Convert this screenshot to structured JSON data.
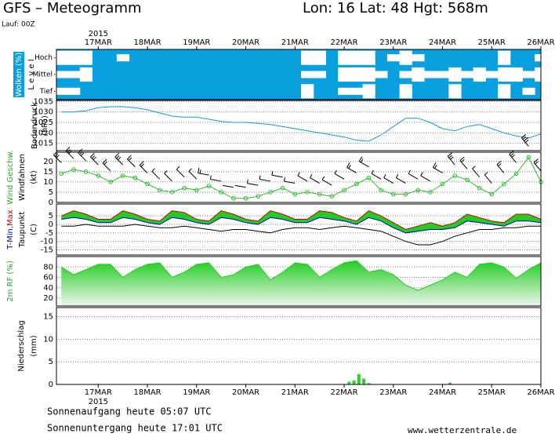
{
  "chart_data": {
    "type": "meteogram",
    "title": "GFS – Meteogramm",
    "location": "Lon: 16 Lat: 48 Hgt: 568m",
    "run": "Lauf: 00Z",
    "year": "2015",
    "sunrise": "Sonnenaufgang heute 05:07 UTC",
    "sunset": "Sonnenuntergang heute 17:01 UTC",
    "source": "www.wetterzentrale.de",
    "xlim": [
      16.15,
      26
    ],
    "xticks": [
      {
        "value": 17,
        "label": "17MAR"
      },
      {
        "value": 18,
        "label": "18MAR"
      },
      {
        "value": 19,
        "label": "19MAR"
      },
      {
        "value": 20,
        "label": "20MAR"
      },
      {
        "value": 21,
        "label": "21MAR"
      },
      {
        "value": 22,
        "label": "22MAR"
      },
      {
        "value": 23,
        "label": "23MAR"
      },
      {
        "value": 24,
        "label": "24MAR"
      },
      {
        "value": 25,
        "label": "25MAR"
      },
      {
        "value": 26,
        "label": "26MAR"
      }
    ],
    "x": [
      16.25,
      16.5,
      16.75,
      17,
      17.25,
      17.5,
      17.75,
      18,
      18.25,
      18.5,
      18.75,
      19,
      19.25,
      19.5,
      19.75,
      20,
      20.25,
      20.5,
      20.75,
      21,
      21.25,
      21.5,
      21.75,
      22,
      22.25,
      22.5,
      22.75,
      23,
      23.25,
      23.5,
      23.75,
      24,
      24.25,
      24.5,
      24.75,
      25,
      25.25,
      25.5,
      25.75,
      26
    ],
    "panels": [
      {
        "type": "clouds",
        "ylabel": [
          "Wolken (%)",
          "L e v e l"
        ],
        "background": "#0aa0e0",
        "color": "#ffffff",
        "series": [
          {
            "name": "Hoch",
            "values": [
              1,
              1,
              1,
              0,
              0,
              0.5,
              0,
              0,
              0,
              0,
              0,
              0,
              0,
              0,
              0,
              0,
              0,
              0,
              0,
              0,
              1,
              1,
              0,
              1,
              1,
              1,
              0,
              0.5,
              1,
              0.5,
              0,
              0,
              0,
              0,
              0,
              0,
              1,
              0,
              0,
              0.5
            ]
          },
          {
            "name": "Mittel",
            "values": [
              0.5,
              0.5,
              1,
              0,
              0,
              0,
              0,
              0,
              0,
              0,
              0,
              0,
              0,
              0,
              0,
              0,
              0,
              0,
              0,
              0,
              0.5,
              0.5,
              0,
              1,
              1,
              1,
              0.5,
              0,
              0.5,
              1,
              0.5,
              0.5,
              1,
              0.5,
              1,
              0.5,
              1,
              1,
              0.5,
              1
            ]
          },
          {
            "name": "Tief",
            "values": [
              0.5,
              0.5,
              0,
              0,
              0,
              0,
              0,
              0,
              0,
              0,
              0,
              0,
              0,
              0,
              0,
              0,
              0,
              0,
              0,
              0,
              1,
              0,
              0,
              0.5,
              0.5,
              1,
              0,
              0,
              1,
              0,
              0,
              0,
              1,
              0,
              0,
              0,
              1,
              0,
              0.5,
              0
            ]
          }
        ]
      },
      {
        "type": "line",
        "ylabel": [
          "Bodendruck",
          "(hPa)"
        ],
        "ylabel_color": "#000000",
        "ylim": [
          1011.5,
          1035.5
        ],
        "yticks": [
          1015,
          1020,
          1025,
          1030,
          1035
        ],
        "grid": true,
        "series": [
          {
            "color": "#1c96d0",
            "values": [
              1030,
              1030,
              1030.5,
              1032,
              1032.5,
              1032.5,
              1032,
              1031,
              1029.5,
              1028,
              1027.5,
              1027.5,
              1026.5,
              1025.5,
              1025,
              1025,
              1024.5,
              1024,
              1023,
              1022,
              1021,
              1020,
              1019,
              1018,
              1016.5,
              1016,
              1019,
              1023,
              1027,
              1027,
              1025,
              1022,
              1021,
              1023,
              1024,
              1022,
              1020,
              1018.5,
              1017.5,
              1019.5
            ]
          }
        ]
      },
      {
        "type": "wind",
        "ylabel": [
          "Wind Geschw.",
          "Windfahnen",
          "(kt)"
        ],
        "ylabel_colors": [
          "#22aa22",
          "#000000",
          "#000000"
        ],
        "ylim": [
          0,
          24.5
        ],
        "yticks": [
          0,
          5,
          10,
          15,
          20
        ],
        "grid": true,
        "series": [
          {
            "color": "#33bb33",
            "barb_color": "#000000",
            "values": [
              14,
              16,
              15,
              13,
              10,
              13,
              12,
              9,
              6,
              5,
              7,
              6,
              8,
              5,
              2,
              2,
              3,
              5,
              7,
              4,
              5,
              4,
              3,
              6,
              9,
              12,
              6,
              4,
              4,
              6,
              5,
              9,
              13,
              11,
              7,
              4,
              9,
              14,
              22,
              10
            ],
            "directions": [
              315,
              315,
              315,
              315,
              315,
              315,
              315,
              315,
              315,
              315,
              315,
              315,
              280,
              280,
              280,
              280,
              280,
              280,
              280,
              280,
              300,
              300,
              300,
              300,
              300,
              300,
              300,
              300,
              300,
              300,
              300,
              300,
              320,
              320,
              320,
              320,
              320,
              320,
              320,
              320
            ]
          }
        ]
      },
      {
        "type": "temperature",
        "ylabel": [
          "Taupunkt",
          "(C)"
        ],
        "ylabel_color": "#000000",
        "ylim": [
          -18,
          12
        ],
        "yticks": [
          5,
          0,
          -5,
          -10,
          -15
        ],
        "grid": true,
        "fill": "#22cc22",
        "separator": ",",
        "separator_color": "#008800",
        "series": [
          {
            "name": "Max",
            "color": "#d00000",
            "values": [
              5,
              8,
              6,
              3,
              3,
              8,
              6,
              3,
              2,
              8,
              7,
              3,
              2,
              8,
              6,
              3,
              2,
              8,
              6,
              3,
              3,
              8,
              7,
              4,
              2,
              8,
              5,
              1,
              -3,
              -1,
              1,
              -1,
              1,
              6,
              4,
              2,
              1,
              6,
              6,
              3
            ]
          },
          {
            "name": "T-Min",
            "color": "#0000d0",
            "values": [
              3,
              4,
              3,
              1,
              1,
              4,
              3,
              1,
              0,
              4,
              3,
              1,
              0,
              4,
              3,
              1,
              0,
              4,
              3,
              1,
              1,
              4,
              3,
              2,
              0,
              4,
              2,
              -2,
              -5,
              -4,
              -3,
              -3,
              -2,
              2,
              1,
              0,
              -1,
              2,
              2,
              1
            ]
          },
          {
            "name": "Taupunkt",
            "color": "#000000",
            "values": [
              -1,
              -1,
              0,
              -1,
              -1,
              -1,
              0,
              -1,
              -2,
              -2,
              -1,
              -2,
              -3,
              -4,
              -3,
              -3,
              -4,
              -5,
              -3,
              -2,
              -2,
              -3,
              -2,
              -1,
              -2,
              -3,
              -4,
              -7,
              -10,
              -12,
              -12,
              -10,
              -7,
              -5,
              -3,
              -3,
              -2,
              -2,
              -1,
              -1
            ]
          }
        ]
      },
      {
        "type": "area",
        "ylabel": [
          "2m RF (%)"
        ],
        "ylabel_color": "#22aa22",
        "ylim": [
          5,
          100
        ],
        "yticks": [
          80,
          60,
          40,
          20
        ],
        "grid": true,
        "series": [
          {
            "color": "#22cc22",
            "values": [
              80,
              65,
              75,
              85,
              85,
              60,
              75,
              85,
              88,
              60,
              70,
              85,
              88,
              60,
              65,
              80,
              85,
              55,
              70,
              88,
              85,
              60,
              75,
              88,
              92,
              70,
              75,
              65,
              45,
              35,
              45,
              55,
              70,
              60,
              85,
              88,
              80,
              58,
              75,
              88
            ]
          }
        ]
      },
      {
        "type": "bar",
        "ylabel": [
          "Niederschlag",
          "(mm)"
        ],
        "ylabel_color": "#000000",
        "ylim": [
          0,
          17
        ],
        "yticks": [
          0,
          5,
          10,
          15
        ],
        "grid": true,
        "color": "#33cc33",
        "x": [
          22.1,
          22.2,
          22.3,
          22.4,
          22.5,
          24.15
        ],
        "values": [
          0.6,
          0.9,
          2.3,
          1.3,
          0.3,
          0.4
        ]
      }
    ]
  }
}
